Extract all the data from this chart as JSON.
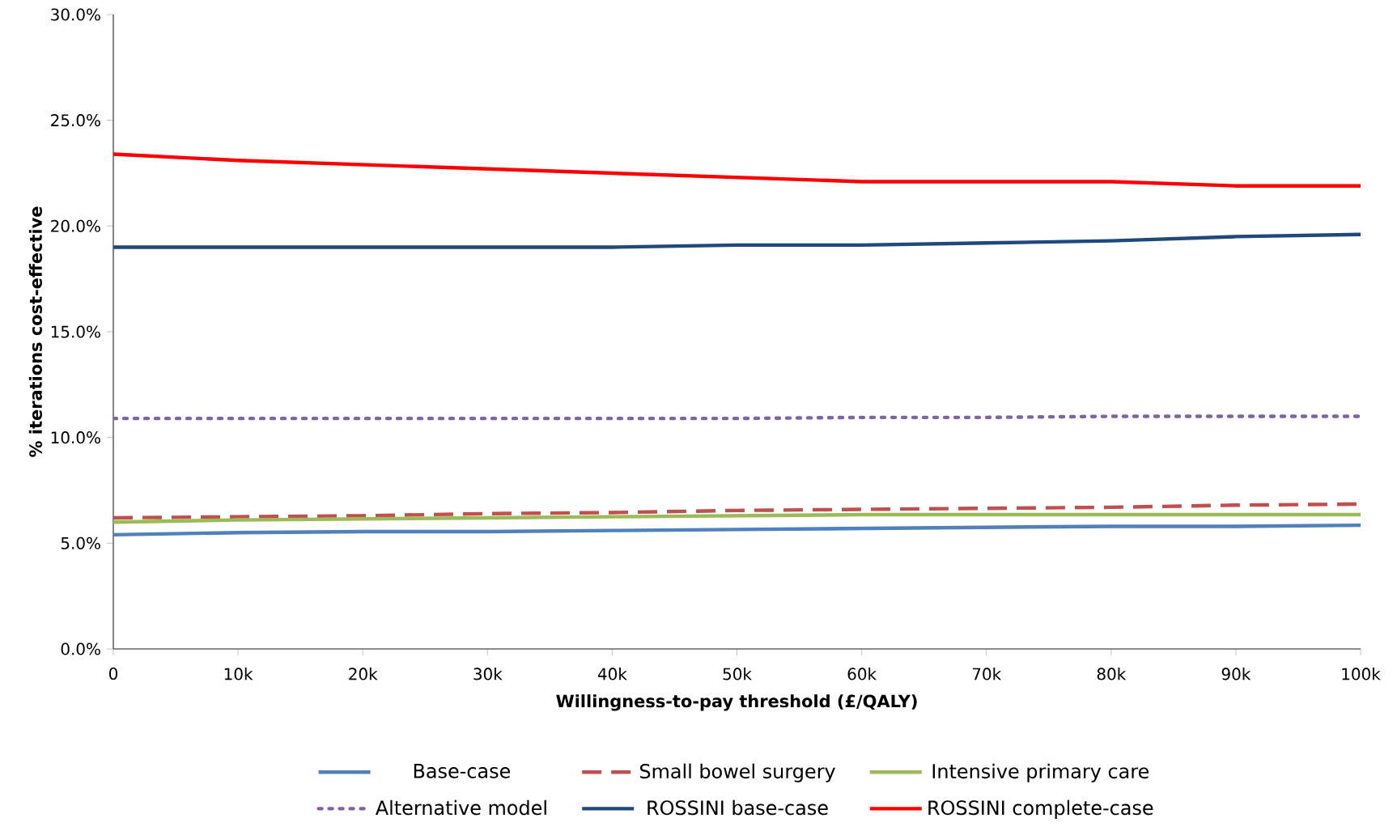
{
  "chart_data": {
    "type": "line",
    "xlabel": "Willingness-to-pay threshold (£/QALY)",
    "ylabel": "% iterations cost-effective",
    "x": [
      0,
      10000,
      20000,
      30000,
      40000,
      50000,
      60000,
      70000,
      80000,
      90000,
      100000
    ],
    "xlim": [
      0,
      100000
    ],
    "xticks": [
      0,
      {
        "value": 10000,
        "label": "10k"
      },
      {
        "value": 20000,
        "label": "20k"
      },
      {
        "value": 30000,
        "label": "30k"
      },
      {
        "value": 40000,
        "label": "40k"
      },
      {
        "value": 50000,
        "label": "50k"
      },
      {
        "value": 60000,
        "label": "60k"
      },
      {
        "value": 70000,
        "label": "70k"
      },
      {
        "value": 80000,
        "label": "80k"
      },
      {
        "value": 90000,
        "label": "90k"
      },
      {
        "value": 100000,
        "label": "100k"
      }
    ],
    "ylim": [
      0,
      30
    ],
    "yticks": [
      {
        "value": 0,
        "label": "0.0%"
      },
      {
        "value": 5,
        "label": "5.0%"
      },
      {
        "value": 10,
        "label": "10.0%"
      },
      {
        "value": 15,
        "label": "15.0%"
      },
      {
        "value": 20,
        "label": "20.0%"
      },
      {
        "value": 25,
        "label": "25.0%"
      },
      {
        "value": 30,
        "label": "30.0%"
      }
    ],
    "grid": false,
    "legend": "bottom",
    "marker": "none",
    "series": [
      {
        "name": "Base-case",
        "color": "#4f81bd",
        "line_style": "solid",
        "values": [
          5.4,
          5.5,
          5.55,
          5.55,
          5.6,
          5.65,
          5.7,
          5.75,
          5.8,
          5.8,
          5.85
        ]
      },
      {
        "name": "Small bowel surgery",
        "color": "#c0504d",
        "line_style": "dashed",
        "values": [
          6.2,
          6.25,
          6.3,
          6.4,
          6.45,
          6.55,
          6.6,
          6.65,
          6.7,
          6.8,
          6.85
        ]
      },
      {
        "name": "Intensive primary care",
        "color": "#9bbb59",
        "line_style": "solid",
        "values": [
          6.0,
          6.1,
          6.15,
          6.2,
          6.25,
          6.3,
          6.35,
          6.35,
          6.35,
          6.35,
          6.35
        ]
      },
      {
        "name": "Alternative model",
        "color": "#8064a2",
        "line_style": "dotted",
        "values": [
          10.9,
          10.9,
          10.9,
          10.9,
          10.9,
          10.9,
          10.95,
          10.95,
          11.0,
          11.0,
          11.0
        ]
      },
      {
        "name": "ROSSINI base-case",
        "color": "#1f497d",
        "line_style": "solid",
        "values": [
          19.0,
          19.0,
          19.0,
          19.0,
          19.0,
          19.1,
          19.1,
          19.2,
          19.3,
          19.5,
          19.6
        ]
      },
      {
        "name": "ROSSINI complete-case",
        "color": "#ff0000",
        "line_style": "solid",
        "values": [
          23.4,
          23.1,
          22.9,
          22.7,
          22.5,
          22.3,
          22.1,
          22.1,
          22.1,
          21.9,
          21.9
        ]
      }
    ]
  }
}
